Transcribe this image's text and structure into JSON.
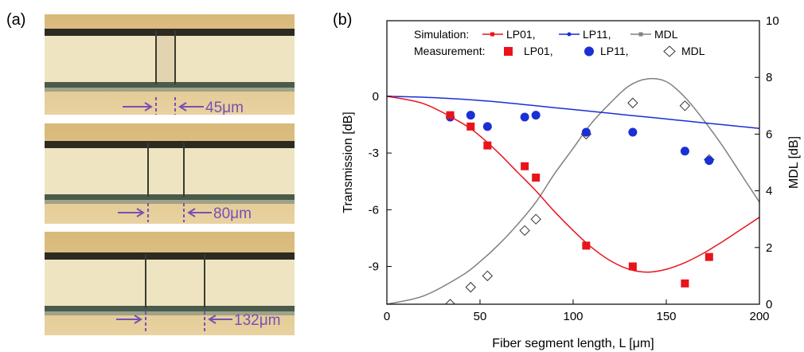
{
  "figure": {
    "panel_a_label": "(a)",
    "panel_b_label": "(b)",
    "micrographs": [
      {
        "label": "45μm",
        "segment_um": 45
      },
      {
        "label": "80μm",
        "segment_um": 80
      },
      {
        "label": "132μm",
        "segment_um": 132
      }
    ]
  },
  "colors": {
    "lp01": "#e8141c",
    "lp11": "#1a2fd6",
    "mdl": "#808080",
    "arrow": "#7a4fb5"
  },
  "chart_data": {
    "type": "line",
    "xlabel": "Fiber segment length, L [μm]",
    "ylabel": "Transmission [dB]",
    "y2label": "MDL [dB]",
    "xlim": [
      0,
      200
    ],
    "ylim": [
      -11,
      4
    ],
    "y2lim": [
      0,
      10
    ],
    "xticks": [
      0,
      50,
      100,
      150,
      200
    ],
    "yticks": [
      0,
      -3,
      -6,
      -9
    ],
    "y2ticks": [
      0,
      2,
      4,
      6,
      8,
      10
    ],
    "grid": false,
    "legend": {
      "position": "top",
      "simulation_label": "Simulation:",
      "measurement_label": "Measurement:",
      "entries": [
        "LP01,",
        "LP11,",
        "MDL"
      ]
    },
    "simulation": {
      "x": [
        0,
        20,
        40,
        50,
        60,
        70,
        80,
        90,
        100,
        110,
        120,
        130,
        140,
        150,
        160,
        170,
        180,
        190,
        200
      ],
      "lp01": [
        0,
        -0.4,
        -1.4,
        -2.1,
        -3.0,
        -4.0,
        -5.0,
        -6.1,
        -7.1,
        -8.0,
        -8.7,
        -9.15,
        -9.3,
        -9.15,
        -8.8,
        -8.3,
        -7.7,
        -7.05,
        -6.4
      ],
      "lp11": [
        0,
        -0.05,
        -0.15,
        -0.22,
        -0.3,
        -0.4,
        -0.5,
        -0.6,
        -0.7,
        -0.8,
        -0.9,
        -1.0,
        -1.1,
        -1.2,
        -1.3,
        -1.4,
        -1.5,
        -1.6,
        -1.7
      ],
      "mdl": [
        0,
        0.3,
        1.0,
        1.5,
        2.1,
        2.8,
        3.6,
        4.6,
        5.5,
        6.4,
        7.1,
        7.7,
        7.95,
        7.85,
        7.3,
        6.5,
        5.6,
        4.6,
        3.6
      ]
    },
    "measurement": {
      "lp01": {
        "x": [
          34,
          45,
          54,
          74,
          80,
          107,
          132,
          160,
          173
        ],
        "y": [
          -1.0,
          -1.6,
          -2.6,
          -3.7,
          -4.3,
          -7.9,
          -9.0,
          -9.9,
          -8.5
        ]
      },
      "lp11": {
        "x": [
          34,
          45,
          54,
          74,
          80,
          107,
          132,
          160,
          173
        ],
        "y": [
          -1.1,
          -1.0,
          -1.6,
          -1.1,
          -1.0,
          -1.9,
          -1.9,
          -2.9,
          -3.4
        ]
      },
      "mdl": {
        "x": [
          34,
          45,
          54,
          74,
          80,
          107,
          132,
          160,
          173
        ],
        "y": [
          0,
          0.6,
          1.0,
          2.6,
          3.0,
          6.0,
          7.1,
          7.0,
          5.1
        ]
      }
    }
  }
}
